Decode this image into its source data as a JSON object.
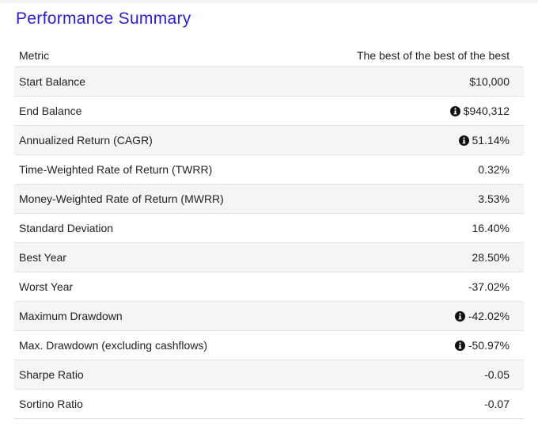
{
  "header": {
    "title": "Performance Summary"
  },
  "table": {
    "columns": [
      "Metric",
      "The best of the best of the best"
    ],
    "rows": [
      [
        "Start Balance",
        "$10,000"
      ],
      [
        "End Balance",
        "$940,312"
      ],
      [
        "Annualized Return (CAGR)",
        "51.14%"
      ],
      [
        "Time-Weighted Rate of Return (TWRR)",
        "0.32%"
      ],
      [
        "Money-Weighted Rate of Return (MWRR)",
        "3.53%"
      ],
      [
        "Standard Deviation",
        "16.40%"
      ],
      [
        "Best Year",
        "28.50%"
      ],
      [
        "Worst Year",
        "-37.02%"
      ],
      [
        "Maximum Drawdown",
        "-42.02%"
      ],
      [
        "Max. Drawdown (excluding cashflows)",
        "-50.97%"
      ],
      [
        "Sharpe Ratio",
        "-0.05"
      ],
      [
        "Sortino Ratio",
        "-0.07"
      ]
    ]
  }
}
